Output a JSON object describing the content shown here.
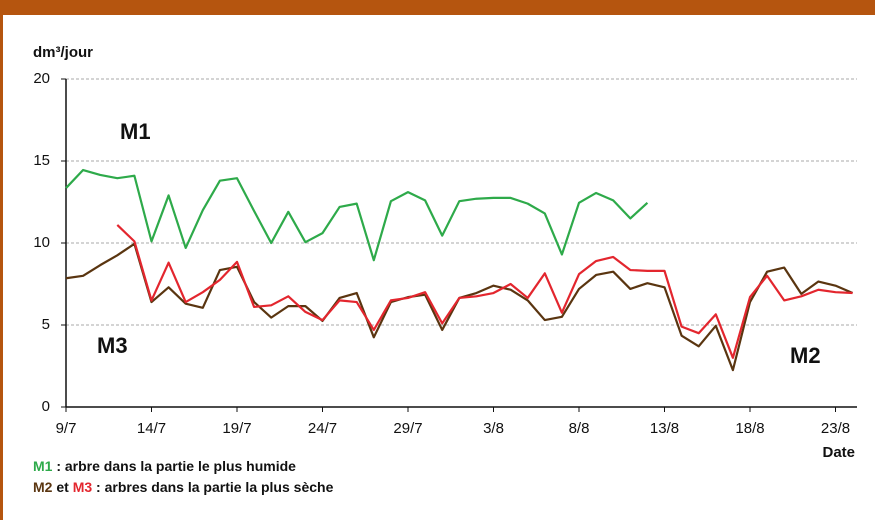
{
  "chart_data": {
    "type": "line",
    "y_label": "dm³/jour",
    "x_label": "Date",
    "categories": [
      "9/7",
      null,
      null,
      null,
      null,
      "14/7",
      null,
      null,
      null,
      null,
      "19/7",
      null,
      null,
      null,
      null,
      "24/7",
      null,
      null,
      null,
      null,
      "29/7",
      null,
      null,
      null,
      null,
      "3/8",
      null,
      null,
      null,
      null,
      "8/8",
      null,
      null,
      null,
      null,
      "13/8",
      null,
      null,
      null,
      null,
      "18/8",
      null,
      null,
      null,
      null,
      "23/8",
      null
    ],
    "series": [
      {
        "name": "M1",
        "color": "#2eaa4a",
        "values": [
          13.35,
          14.45,
          14.15,
          13.95,
          14.1,
          10.1,
          12.9,
          9.7,
          12.0,
          13.8,
          13.95,
          11.95,
          10.0,
          11.9,
          10.05,
          10.6,
          12.2,
          12.4,
          8.95,
          12.55,
          13.1,
          12.6,
          10.45,
          12.55,
          12.7,
          12.75,
          12.75,
          12.4,
          11.8,
          9.3,
          12.45,
          13.05,
          12.6,
          11.5,
          12.45,
          null,
          null,
          null,
          null,
          null,
          null,
          null,
          null,
          null,
          null,
          null,
          null
        ]
      },
      {
        "name": "M2",
        "color": "#5a3510",
        "values": [
          7.85,
          8.0,
          8.65,
          9.25,
          9.95,
          6.4,
          7.3,
          6.3,
          6.05,
          8.35,
          8.55,
          6.4,
          5.45,
          6.15,
          6.15,
          5.25,
          6.65,
          6.95,
          4.25,
          6.4,
          6.7,
          6.85,
          4.7,
          6.65,
          6.95,
          7.4,
          7.15,
          6.5,
          5.3,
          5.5,
          7.2,
          8.05,
          8.25,
          7.2,
          7.55,
          7.3,
          4.35,
          3.7,
          4.95,
          2.25,
          6.4,
          8.25,
          8.5,
          6.9,
          7.65,
          7.4,
          6.95
        ]
      },
      {
        "name": "M3",
        "color": "#e3262e",
        "values": [
          null,
          null,
          null,
          11.1,
          10.1,
          6.5,
          8.8,
          6.4,
          7.0,
          7.75,
          8.85,
          6.1,
          6.2,
          6.75,
          5.8,
          5.3,
          6.5,
          6.4,
          4.7,
          6.5,
          6.65,
          7.0,
          5.1,
          6.65,
          6.75,
          6.95,
          7.5,
          6.65,
          8.15,
          5.75,
          8.1,
          8.9,
          9.15,
          8.35,
          8.3,
          8.3,
          4.9,
          4.5,
          5.65,
          3.0,
          6.7,
          8.0,
          6.5,
          6.75,
          7.15,
          7.0,
          6.95
        ]
      }
    ],
    "ylim": [
      0,
      20
    ],
    "yticks": [
      0,
      5,
      10,
      15,
      20
    ],
    "grid": true,
    "notes": [
      {
        "parts": [
          "M1",
          " : arbre dans la partie le plus humide"
        ]
      },
      {
        "parts": [
          "M2",
          " et ",
          "M3",
          " : arbres dans la partie la plus sèche"
        ]
      }
    ]
  }
}
